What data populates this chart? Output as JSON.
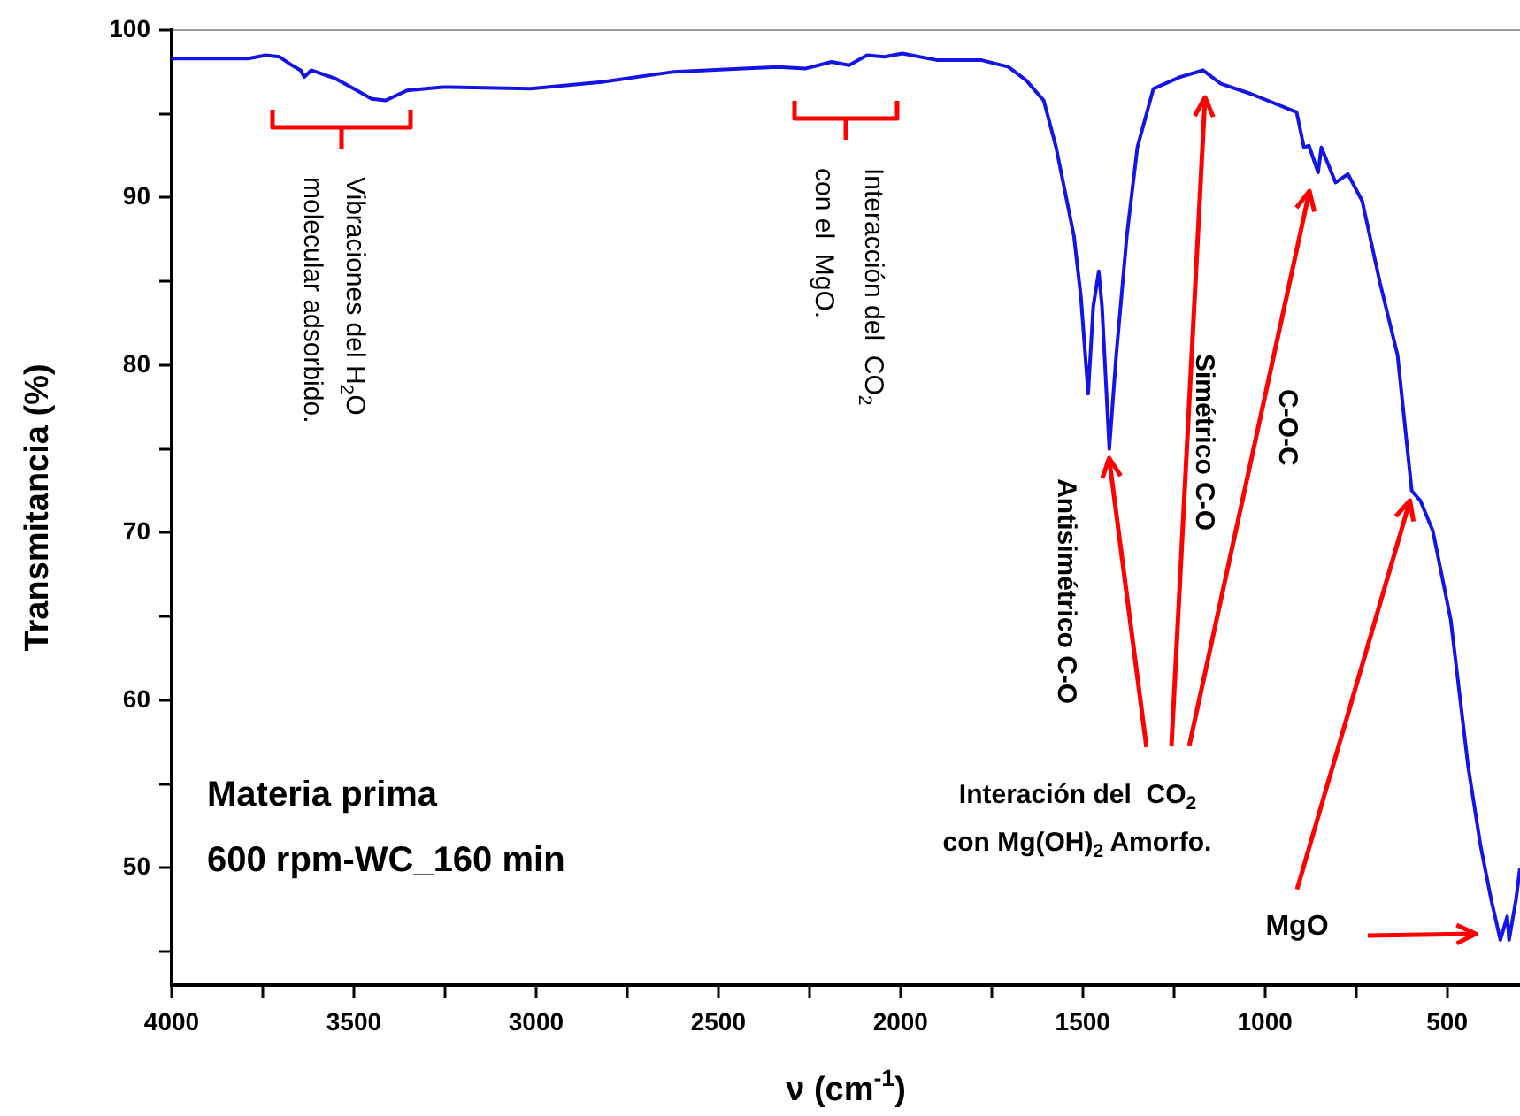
{
  "chart_data": {
    "type": "line",
    "xlabel": "ν (cm$^{-1}$)",
    "ylabel": "Transmitancia (%)",
    "color": "#1414e6",
    "x": [
      4000,
      3790,
      3742,
      3704,
      3670,
      3646,
      3636,
      3617,
      3550,
      3500,
      3451,
      3413,
      3354,
      3257,
      3015,
      2820,
      2626,
      2432,
      2335,
      2262,
      2189,
      2141,
      2092,
      2044,
      1995,
      1898,
      1777,
      1704,
      1655,
      1607,
      1573,
      1524,
      1505,
      1485,
      1471,
      1456,
      1447,
      1427,
      1408,
      1379,
      1350,
      1306,
      1233,
      1170,
      1121,
      1039,
      913,
      893,
      879,
      854,
      845,
      806,
      772,
      733,
      684,
      636,
      597,
      573,
      539,
      490,
      442,
      408,
      379,
      354,
      335,
      330,
      311,
      300
    ],
    "values": [
      98.3,
      98.3,
      98.5,
      98.4,
      97.9,
      97.6,
      97.2,
      97.6,
      97.1,
      96.5,
      95.9,
      95.8,
      96.4,
      96.6,
      96.5,
      96.9,
      97.5,
      97.7,
      97.8,
      97.7,
      98.1,
      97.9,
      98.5,
      98.4,
      98.6,
      98.2,
      98.2,
      97.8,
      97.0,
      95.8,
      93.0,
      87.7,
      84.1,
      78.3,
      83.5,
      85.6,
      83.5,
      75.0,
      80.6,
      87.7,
      93.0,
      96.5,
      97.2,
      97.6,
      96.8,
      96.2,
      95.1,
      93.0,
      93.1,
      91.5,
      93.0,
      90.9,
      91.4,
      89.8,
      84.9,
      80.6,
      72.5,
      71.9,
      70.1,
      64.8,
      56.0,
      51.3,
      48.1,
      45.7,
      47.1,
      45.7,
      48.1,
      50.0
    ],
    "xlim": [
      4000,
      300
    ],
    "xticks": [
      4000,
      {
        "value": 3750,
        "label": null
      },
      3500,
      {
        "value": 3250,
        "label": null
      },
      3000,
      {
        "value": 2750,
        "label": null
      },
      2500,
      {
        "value": 2250,
        "label": null
      },
      2000,
      {
        "value": 1750,
        "label": null
      },
      1500,
      {
        "value": 1250,
        "label": null
      },
      1000,
      {
        "value": 750,
        "label": null
      },
      500
    ],
    "ylim": [
      43,
      100
    ],
    "yticks": [
      {
        "value": 45,
        "label": null
      },
      50,
      {
        "value": 55,
        "label": null
      },
      60,
      {
        "value": 65,
        "label": null
      },
      70,
      {
        "value": 75,
        "label": null
      },
      80,
      {
        "value": 85,
        "label": null
      },
      90,
      {
        "value": 95,
        "label": null
      },
      100
    ],
    "annotations": [
      "Materia prima\n600 rpm-WC_160 min",
      "Vibraciones del H$_{2}$O\nmolecular adsorbido.",
      "Interacción del  CO$_{2}$\ncon el  MgO.",
      {
        "text": "Antisimétrico C-O",
        "x": 1427,
        "y": 74.5
      },
      "Simétrico C-O",
      "C-O-C",
      "Interación del  CO$_{2}$\ncon Mg(OH)$_{2}$ Amorfo.",
      {
        "text": "MgO",
        "x": 602,
        "y": 71.9
      }
    ]
  }
}
